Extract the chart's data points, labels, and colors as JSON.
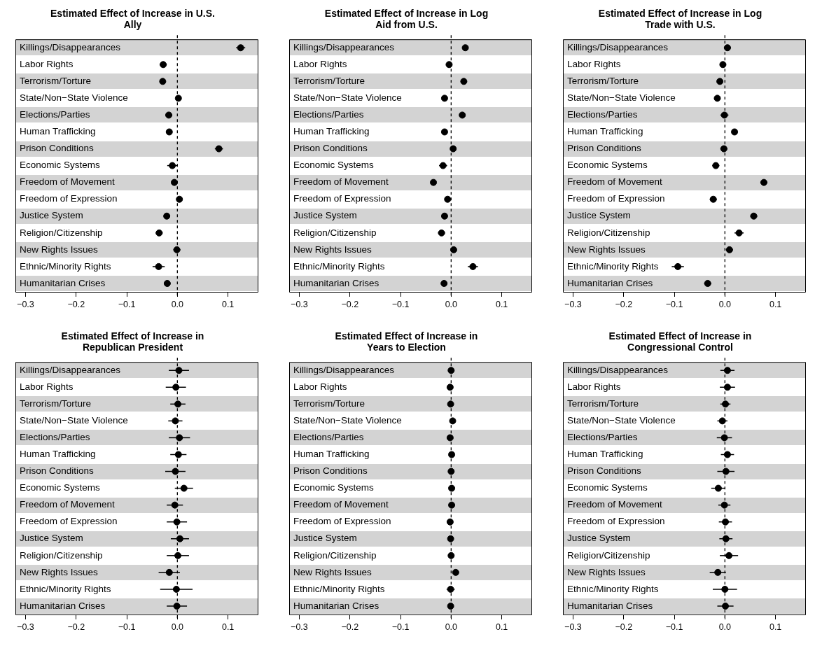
{
  "chart_data": [
    {
      "type": "scatter",
      "orientation": "horizontal",
      "title": "Estimated Effect of Increase in U.S. Ally",
      "categories": [
        "Killings/Disappearances",
        "Labor Rights",
        "Terrorism/Torture",
        "State/Non−State Violence",
        "Elections/Parties",
        "Human Trafficking",
        "Prison Conditions",
        "Economic Systems",
        "Freedom of Movement",
        "Freedom of Expression",
        "Justice System",
        "Religion/Citizenship",
        "New Rights Issues",
        "Ethnic/Minority Rights",
        "Humanitarian Crises"
      ],
      "values": [
        0.125,
        -0.028,
        -0.029,
        0.002,
        -0.017,
        -0.016,
        0.082,
        -0.01,
        -0.006,
        0.004,
        -0.021,
        -0.036,
        -0.001,
        -0.037,
        -0.02
      ],
      "errors": [
        0.009,
        0.007,
        0.004,
        0.005,
        0.007,
        0.006,
        0.008,
        0.01,
        0.004,
        0.006,
        0.006,
        0.007,
        0.007,
        0.012,
        0.006
      ],
      "color": "#000000",
      "marker": "circle",
      "xlim": [
        -0.32,
        0.16
      ],
      "xticks": [
        {
          "value": -0.3,
          "label": "−0.3"
        },
        {
          "value": -0.2,
          "label": "−0.2"
        },
        {
          "value": -0.1,
          "label": "−0.1"
        },
        {
          "value": 0,
          "label": "0.0"
        },
        {
          "value": 0.1,
          "label": "0.1"
        }
      ],
      "ref_lines": [
        {
          "axis": "x",
          "value": 0,
          "line_style": "dashed",
          "color": "#000000"
        }
      ]
    },
    {
      "type": "scatter",
      "orientation": "horizontal",
      "title": "Estimated Effect of Increase in Log Aid from U.S.",
      "categories": [
        "Killings/Disappearances",
        "Labor Rights",
        "Terrorism/Torture",
        "State/Non−State Violence",
        "Elections/Parties",
        "Human Trafficking",
        "Prison Conditions",
        "Economic Systems",
        "Freedom of Movement",
        "Freedom of Expression",
        "Justice System",
        "Religion/Citizenship",
        "New Rights Issues",
        "Ethnic/Minority Rights",
        "Humanitarian Crises"
      ],
      "values": [
        0.028,
        -0.004,
        0.025,
        -0.013,
        0.022,
        -0.013,
        0.004,
        -0.016,
        -0.035,
        -0.007,
        -0.013,
        -0.019,
        0.005,
        0.043,
        -0.014
      ],
      "errors": [
        0.006,
        0.005,
        0.004,
        0.004,
        0.005,
        0.004,
        0.005,
        0.008,
        0.005,
        0.006,
        0.005,
        0.007,
        0.005,
        0.01,
        0.004
      ],
      "color": "#000000",
      "marker": "circle",
      "xlim": [
        -0.32,
        0.16
      ],
      "xticks": [
        {
          "value": -0.3,
          "label": "−0.3"
        },
        {
          "value": -0.2,
          "label": "−0.2"
        },
        {
          "value": -0.1,
          "label": "−0.1"
        },
        {
          "value": 0,
          "label": "0.0"
        },
        {
          "value": 0.1,
          "label": "0.1"
        }
      ],
      "ref_lines": [
        {
          "axis": "x",
          "value": 0,
          "line_style": "dashed",
          "color": "#000000"
        }
      ]
    },
    {
      "type": "scatter",
      "orientation": "horizontal",
      "title": "Estimated Effect of Increase in Log Trade with U.S.",
      "categories": [
        "Killings/Disappearances",
        "Labor Rights",
        "Terrorism/Torture",
        "State/Non−State Violence",
        "Elections/Parties",
        "Human Trafficking",
        "Prison Conditions",
        "Economic Systems",
        "Freedom of Movement",
        "Freedom of Expression",
        "Justice System",
        "Religion/Citizenship",
        "New Rights Issues",
        "Ethnic/Minority Rights",
        "Humanitarian Crises"
      ],
      "values": [
        0.005,
        -0.004,
        -0.01,
        -0.015,
        -0.001,
        0.019,
        -0.002,
        -0.018,
        0.077,
        -0.023,
        0.057,
        0.028,
        0.009,
        -0.093,
        -0.034
      ],
      "errors": [
        0.007,
        0.006,
        0.005,
        0.006,
        0.008,
        0.005,
        0.007,
        0.007,
        0.007,
        0.007,
        0.007,
        0.009,
        0.007,
        0.012,
        0.007
      ],
      "color": "#000000",
      "marker": "circle",
      "xlim": [
        -0.32,
        0.16
      ],
      "xticks": [
        {
          "value": -0.3,
          "label": "−0.3"
        },
        {
          "value": -0.2,
          "label": "−0.2"
        },
        {
          "value": -0.1,
          "label": "−0.1"
        },
        {
          "value": 0,
          "label": "0.0"
        },
        {
          "value": 0.1,
          "label": "0.1"
        }
      ],
      "ref_lines": [
        {
          "axis": "x",
          "value": 0,
          "line_style": "dashed",
          "color": "#000000"
        }
      ]
    },
    {
      "type": "scatter",
      "orientation": "horizontal",
      "title": "Estimated Effect of Increase in Republican President",
      "categories": [
        "Killings/Disappearances",
        "Labor Rights",
        "Terrorism/Torture",
        "State/Non−State Violence",
        "Elections/Parties",
        "Human Trafficking",
        "Prison Conditions",
        "Economic Systems",
        "Freedom of Movement",
        "Freedom of Expression",
        "Justice System",
        "Religion/Citizenship",
        "New Rights Issues",
        "Ethnic/Minority Rights",
        "Humanitarian Crises"
      ],
      "values": [
        0.003,
        -0.003,
        0.001,
        -0.004,
        0.004,
        0.002,
        -0.004,
        0.013,
        -0.005,
        -0.001,
        0.005,
        0.001,
        -0.016,
        -0.002,
        -0.001
      ],
      "errors": [
        0.02,
        0.02,
        0.015,
        0.014,
        0.021,
        0.016,
        0.02,
        0.018,
        0.016,
        0.02,
        0.018,
        0.022,
        0.021,
        0.032,
        0.02
      ],
      "color": "#000000",
      "marker": "circle",
      "xlim": [
        -0.32,
        0.16
      ],
      "xticks": [
        {
          "value": -0.3,
          "label": "−0.3"
        },
        {
          "value": -0.2,
          "label": "−0.2"
        },
        {
          "value": -0.1,
          "label": "−0.1"
        },
        {
          "value": 0,
          "label": "0.0"
        },
        {
          "value": 0.1,
          "label": "0.1"
        }
      ],
      "ref_lines": [
        {
          "axis": "x",
          "value": 0,
          "line_style": "dashed",
          "color": "#000000"
        }
      ]
    },
    {
      "type": "scatter",
      "orientation": "horizontal",
      "title": "Estimated Effect of Increase in Years to Election",
      "categories": [
        "Killings/Disappearances",
        "Labor Rights",
        "Terrorism/Torture",
        "State/Non−State Violence",
        "Elections/Parties",
        "Human Trafficking",
        "Prison Conditions",
        "Economic Systems",
        "Freedom of Movement",
        "Freedom of Expression",
        "Justice System",
        "Religion/Citizenship",
        "New Rights Issues",
        "Ethnic/Minority Rights",
        "Humanitarian Crises"
      ],
      "values": [
        0.0,
        -0.002,
        -0.001,
        0.003,
        -0.002,
        0.001,
        0.0,
        0.001,
        0.001,
        -0.002,
        -0.001,
        0.0,
        0.009,
        -0.001,
        -0.001
      ],
      "errors": [
        0.005,
        0.003,
        0.002,
        0.002,
        0.004,
        0.003,
        0.004,
        0.004,
        0.002,
        0.003,
        0.004,
        0.004,
        0.006,
        0.008,
        0.004
      ],
      "color": "#000000",
      "marker": "circle",
      "xlim": [
        -0.32,
        0.16
      ],
      "xticks": [
        {
          "value": -0.3,
          "label": "−0.3"
        },
        {
          "value": -0.2,
          "label": "−0.2"
        },
        {
          "value": -0.1,
          "label": "−0.1"
        },
        {
          "value": 0,
          "label": "0.0"
        },
        {
          "value": 0.1,
          "label": "0.1"
        }
      ],
      "ref_lines": [
        {
          "axis": "x",
          "value": 0,
          "line_style": "dashed",
          "color": "#000000"
        }
      ]
    },
    {
      "type": "scatter",
      "orientation": "horizontal",
      "title": "Estimated Effect of Increase in Congressional Control",
      "categories": [
        "Killings/Disappearances",
        "Labor Rights",
        "Terrorism/Torture",
        "State/Non−State Violence",
        "Elections/Parties",
        "Human Trafficking",
        "Prison Conditions",
        "Economic Systems",
        "Freedom of Movement",
        "Freedom of Expression",
        "Justice System",
        "Religion/Citizenship",
        "New Rights Issues",
        "Ethnic/Minority Rights",
        "Humanitarian Crises"
      ],
      "values": [
        0.005,
        0.005,
        0.001,
        -0.005,
        -0.001,
        0.005,
        0.002,
        -0.013,
        -0.001,
        0.001,
        0.002,
        0.008,
        -0.014,
        0.0,
        0.001
      ],
      "errors": [
        0.014,
        0.015,
        0.01,
        0.01,
        0.015,
        0.013,
        0.017,
        0.014,
        0.012,
        0.013,
        0.013,
        0.018,
        0.016,
        0.024,
        0.016
      ],
      "color": "#000000",
      "marker": "circle",
      "xlim": [
        -0.32,
        0.16
      ],
      "xticks": [
        {
          "value": -0.3,
          "label": "−0.3"
        },
        {
          "value": -0.2,
          "label": "−0.2"
        },
        {
          "value": -0.1,
          "label": "−0.1"
        },
        {
          "value": 0,
          "label": "0.0"
        },
        {
          "value": 0.1,
          "label": "0.1"
        }
      ],
      "ref_lines": [
        {
          "axis": "x",
          "value": 0,
          "line_style": "dashed",
          "color": "#000000"
        }
      ]
    }
  ]
}
